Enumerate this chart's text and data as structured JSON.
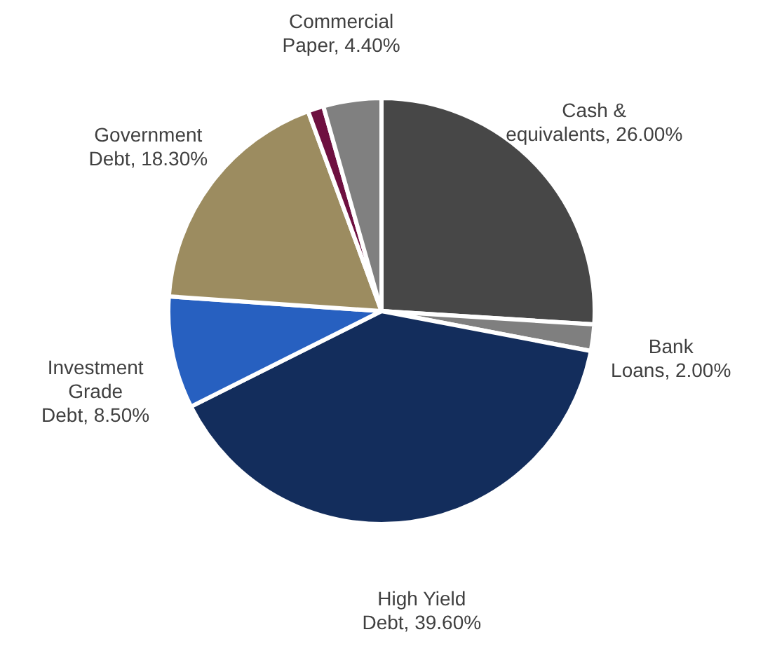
{
  "chart_data": {
    "type": "pie",
    "categories": [
      "Cash & equivalents",
      "Bank Loans",
      "High Yield Debt",
      "Investment Grade Debt",
      "Government Debt",
      null,
      "Commercial Paper"
    ],
    "values": [
      26.0,
      2.0,
      39.6,
      8.5,
      18.3,
      1.2,
      4.4
    ],
    "value_labels": [
      "26.00%",
      "2.00%",
      "39.60%",
      "8.50%",
      "18.30%",
      null,
      "4.40%"
    ],
    "colors": [
      "#474747",
      "#7f7f7f",
      "#132d5c",
      "#2760c0",
      "#9c8c60",
      "#6e1040",
      "#808080"
    ]
  }
}
